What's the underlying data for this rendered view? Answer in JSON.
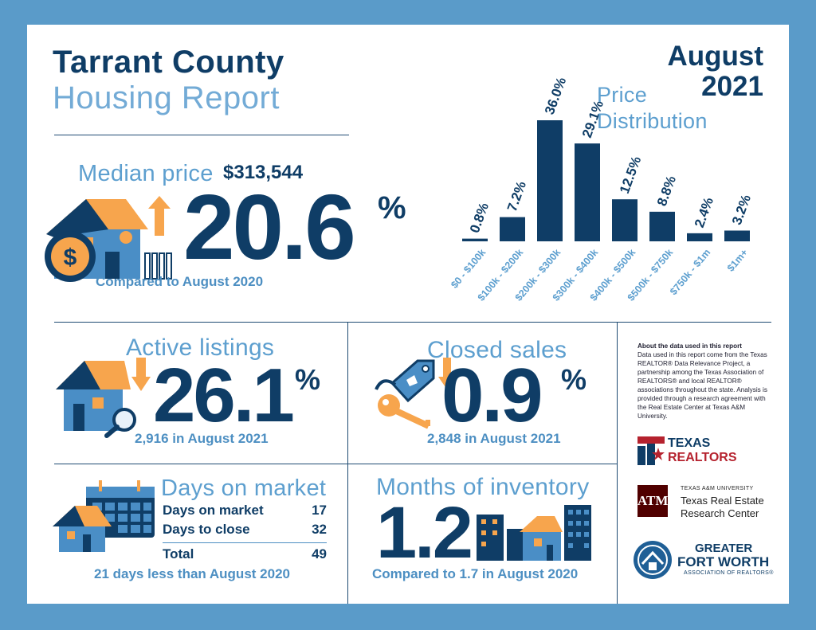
{
  "header": {
    "title_line1": "Tarrant County",
    "title_line2": "Housing Report",
    "period_month": "August",
    "period_year": "2021"
  },
  "median": {
    "label": "Median price",
    "value": "$313,544",
    "change": "20.6",
    "change_symbol": "%",
    "direction": "up",
    "comparison": "Compared to August 2020"
  },
  "price_distribution": {
    "title_line1": "Price",
    "title_line2": "Distribution"
  },
  "chart_data": {
    "type": "bar",
    "title": "Price Distribution",
    "categories": [
      "$0 - $100k",
      "$100k - $200k",
      "$200k - $300k",
      "$300k - $400k",
      "$400k - $500k",
      "$500k - $750k",
      "$750k - $1m",
      "$1m+"
    ],
    "values": [
      0.8,
      7.2,
      36.0,
      29.1,
      12.5,
      8.8,
      2.4,
      3.2
    ],
    "value_labels": [
      "0.8%",
      "7.2%",
      "36.0%",
      "29.1%",
      "12.5%",
      "8.8%",
      "2.4%",
      "3.2%"
    ],
    "ylim": [
      0,
      36
    ],
    "grid": false,
    "bar_color": "#0f3d66"
  },
  "active_listings": {
    "label": "Active listings",
    "change": "26.1",
    "change_symbol": "%",
    "direction": "down",
    "detail": "2,916 in August 2021"
  },
  "closed_sales": {
    "label": "Closed sales",
    "change": "0.9",
    "change_symbol": "%",
    "direction": "down",
    "detail": "2,848 in August 2021"
  },
  "days_on_market": {
    "label": "Days on market",
    "rows": [
      {
        "label": "Days on market",
        "value": "17"
      },
      {
        "label": "Days to close",
        "value": "32"
      }
    ],
    "total_label": "Total",
    "total_value": "49",
    "comparison": "21 days less than August 2020"
  },
  "months_inventory": {
    "label": "Months of inventory",
    "value": "1.2",
    "comparison": "Compared to 1.7 in August 2020"
  },
  "about": {
    "heading": "About the data used in this report",
    "body": "Data used in this report come from the Texas REALTOR® Data Relevance Project, a partnership among the Texas Association of REALTORS® and local REALTOR® associations throughout the state. Analysis is provided through a research agreement with the Real Estate Center at Texas A&M University."
  },
  "logos": {
    "texas_realtors_line1": "TEXAS",
    "texas_realtors_line2": "REALTORS",
    "tamu_line1": "TEXAS A&M UNIVERSITY",
    "tamu_line2": "Texas Real Estate",
    "tamu_line3": "Research Center",
    "gfw_line1": "GREATER",
    "gfw_line2": "FORT WORTH",
    "gfw_line3": "ASSOCIATION OF REALTORS®"
  },
  "colors": {
    "navy": "#0f3d66",
    "light_blue": "#5d9fcf",
    "orange": "#f7a54d",
    "frame": "#5a9bc9",
    "red": "#b5222e",
    "maroon": "#500000"
  }
}
